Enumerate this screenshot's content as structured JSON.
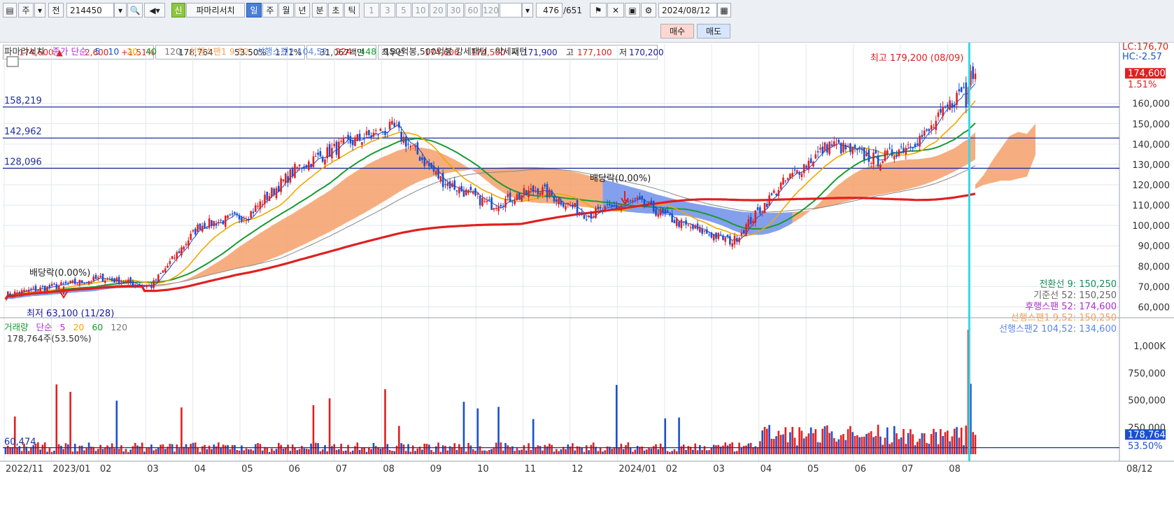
{
  "toolbar": {
    "period_label": "주",
    "scope_label": "전",
    "code": "214450",
    "stock_badge": "신",
    "stock_name": "파마리서치",
    "periods": [
      "일",
      "주",
      "월",
      "년",
      "분",
      "초",
      "틱"
    ],
    "selected_period": "일",
    "intervals": [
      "1",
      "3",
      "5",
      "10",
      "20",
      "30",
      "60",
      "120"
    ],
    "count": "476",
    "total": "/651",
    "date": "2024/08/12"
  },
  "quote": {
    "price": "174,600 ▲",
    "change": "2,600",
    "change_pct": "+1.51%",
    "volume": "178,764",
    "volume_ratio": "53.50%",
    "turnover": "1.71%",
    "amount": "31,067백만",
    "best_label": "최우선",
    "ask": "174,600",
    "bid": "174,500",
    "open_label": "시",
    "open": "171,900",
    "high_label": "고",
    "high": "177,100",
    "low_label": "저",
    "low": "170,200",
    "buy_label": "매수",
    "sell_label": "매도"
  },
  "legend_price": {
    "name": "파마리서치",
    "ma_label": "종가 단순",
    "ma_periods": [
      "5",
      "10",
      "20",
      "40",
      "120"
    ],
    "span1": "선행스팬1 9,52",
    "span2": "선행스팬2 104,52",
    "extra": [
      "224",
      "448"
    ],
    "pattern": "150억봉,500억봉 강세패턴",
    "weak": "약세패턴"
  },
  "legend_volume": {
    "name": "거래량",
    "ma_label": "단순",
    "ma_periods": [
      "5",
      "20",
      "60",
      "120"
    ],
    "current": "178,764주(53.50%)"
  },
  "annotations": {
    "high": "최고 179,200 (08/09)",
    "low": "최저 63,100 (11/28)",
    "dividend1": "배당락(0.00%)",
    "dividend2": "배당락(0.00%)",
    "lc": "LC:176,70",
    "hc": "HC:-2.57",
    "last_price": "174,600",
    "last_pct": "1.51%",
    "vol_ref": "60,474",
    "last_vol": "178,764",
    "last_vol_pct": "53.50%",
    "date_end": "08/12"
  },
  "ichimoku_readout": [
    {
      "label": "전환선 9: 150,250",
      "color": "#1a8a5a"
    },
    {
      "label": "기준선 52: 150,250",
      "color": "#666666"
    },
    {
      "label": "후행스팬 52: 174,600",
      "color": "#b030d0"
    },
    {
      "label": "선행스팬1 9,52: 150,250",
      "color": "#f0a060"
    },
    {
      "label": "선행스팬2 104,52: 134,600",
      "color": "#5b86e5"
    }
  ],
  "chart_data": {
    "type": "candlestick",
    "price_axis_ticks": [
      "160,000",
      "150,000",
      "140,000",
      "130,000",
      "120,000",
      "110,000",
      "100,000",
      "90,000",
      "80,000",
      "70,000",
      "60,000"
    ],
    "volume_axis_ticks": [
      "1,000K",
      "750,000",
      "500,000",
      "250,000"
    ],
    "horizontal_levels": [
      {
        "label": "158,219",
        "value": 158219
      },
      {
        "label": "142,962",
        "value": 142962
      },
      {
        "label": "128,096",
        "value": 128096
      }
    ],
    "x_labels": [
      "2022/11",
      "2023/01",
      "02",
      "03",
      "04",
      "05",
      "06",
      "07",
      "08",
      "09",
      "10",
      "11",
      "12",
      "2024/01",
      "02",
      "03",
      "04",
      "05",
      "06",
      "07",
      "08"
    ],
    "monthly_close": [
      66000,
      70000,
      74000,
      70000,
      100000,
      105000,
      128000,
      140000,
      148000,
      122000,
      110000,
      118000,
      105000,
      112000,
      100000,
      92000,
      120000,
      140000,
      132000,
      145000,
      174600
    ],
    "ylim": [
      55000,
      185000
    ],
    "volume_ylim": [
      0,
      1150000
    ],
    "last_close": 174600,
    "period_high": 179200,
    "period_low": 63100
  },
  "colors": {
    "up": "#e02020",
    "down": "#1a4fd0",
    "ma5": "#1a4fd0",
    "ma20": "#f0a800",
    "ma40": "#1a9a30",
    "ma120": "#888888",
    "ma224": "#e02020",
    "span1_cloud": "#f5a06a",
    "span2_cloud": "#6f8fea",
    "level_line": "#1f2f9a",
    "cursor": "#35d7e8"
  }
}
